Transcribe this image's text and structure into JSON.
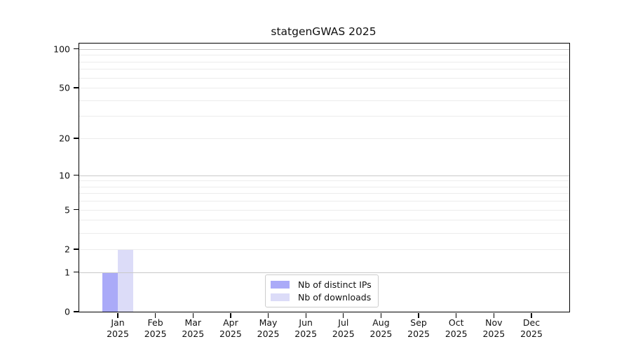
{
  "title": "statgenGWAS 2025",
  "legend": {
    "items": [
      {
        "label": "Nb of distinct IPs",
        "color": "#aaaaf8"
      },
      {
        "label": "Nb of downloads",
        "color": "#dcdcf8"
      }
    ]
  },
  "colors": {
    "bar_distinct_ips": "#aaaaf8",
    "bar_downloads": "#dcdcf8",
    "axis": "#000000",
    "grid_major": "#c9c9c9",
    "grid_minor": "#ececec",
    "legend_border": "#cccccc",
    "text": "#111111"
  },
  "chart_data": {
    "type": "bar",
    "title": "statgenGWAS 2025",
    "categories": [
      "Jan 2025",
      "Feb 2025",
      "Mar 2025",
      "Apr 2025",
      "May 2025",
      "Jun 2025",
      "Jul 2025",
      "Aug 2025",
      "Sep 2025",
      "Oct 2025",
      "Nov 2025",
      "Dec 2025"
    ],
    "months": [
      "Jan",
      "Feb",
      "Mar",
      "Apr",
      "May",
      "Jun",
      "Jul",
      "Aug",
      "Sep",
      "Oct",
      "Nov",
      "Dec"
    ],
    "year": "2025",
    "series": [
      {
        "name": "Nb of distinct IPs",
        "color": "#aaaaf8",
        "values": [
          1,
          0,
          0,
          0,
          0,
          0,
          0,
          0,
          0,
          0,
          0,
          0
        ]
      },
      {
        "name": "Nb of downloads",
        "color": "#dcdcf8",
        "values": [
          2,
          0,
          0,
          0,
          0,
          0,
          0,
          0,
          0,
          0,
          0,
          0
        ]
      }
    ],
    "xlabel": "",
    "ylabel": "",
    "yscale": "log1p",
    "ylim": [
      0,
      110
    ],
    "y_major_ticks": [
      0,
      1,
      2,
      5,
      10,
      20,
      50,
      100
    ],
    "y_major_gridlines": [
      1,
      10,
      100
    ],
    "y_minor_gridlines": [
      2,
      3,
      4,
      5,
      6,
      7,
      8,
      9,
      20,
      30,
      40,
      50,
      60,
      70,
      80,
      90
    ],
    "grid": "horizontal",
    "legend_position": "lower center"
  }
}
